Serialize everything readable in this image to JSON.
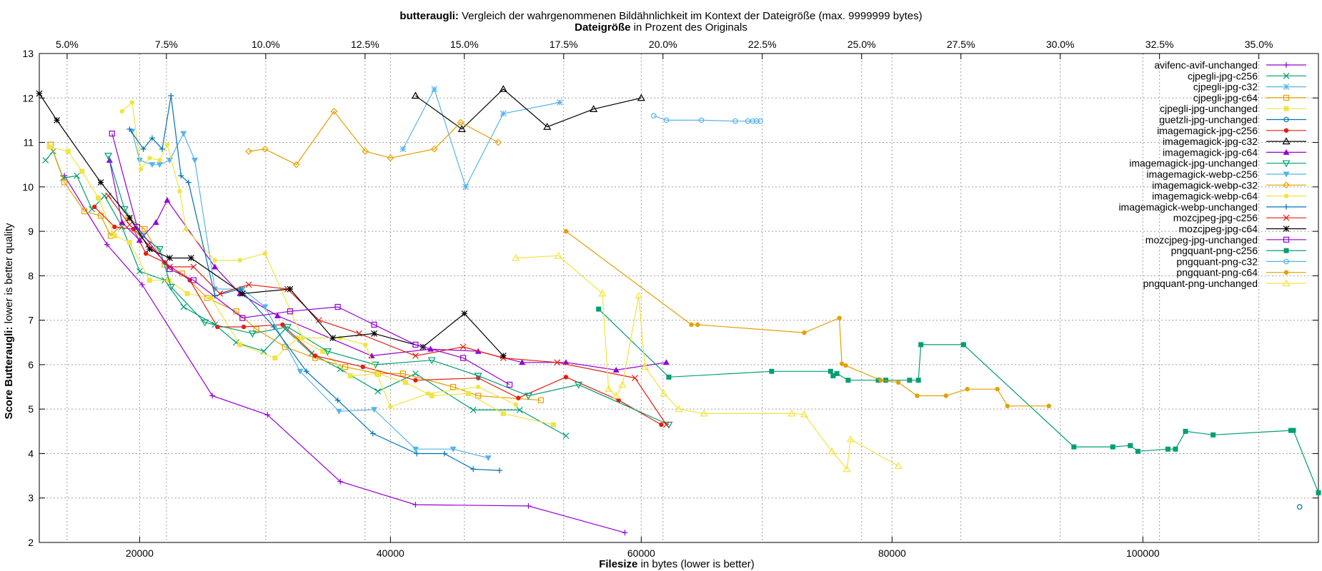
{
  "chart_data": {
    "type": "line",
    "title_bold": "butteraugli:",
    "title_rest": " Vergleich der wahrgenommenen Bildähnlichkeit im Kontext der Dateigröße (max. 9999999 bytes)",
    "x2label_bold": "Dateigröße",
    "x2label_rest": " in Prozent des Originals",
    "xlabel_bold": "Filesize",
    "xlabel_rest": " in bytes (lower is better)",
    "ylabel_bold": "Score Butteraugli:",
    "ylabel_rest": " lower is better quality",
    "xlim": [
      12000,
      114000
    ],
    "ylim": [
      2,
      13
    ],
    "x2lim": [
      4.3,
      36.5
    ],
    "xticks": [
      20000,
      40000,
      60000,
      80000,
      100000
    ],
    "xtick_labels": [
      "20000",
      "40000",
      "60000",
      "80000",
      "100000"
    ],
    "yticks": [
      2,
      3,
      4,
      5,
      6,
      7,
      8,
      9,
      10,
      11,
      12,
      13
    ],
    "ytick_labels": [
      "2",
      "3",
      "4",
      "5",
      "6",
      "7",
      "8",
      "9",
      "10",
      "11",
      "12",
      "13"
    ],
    "x2ticks": [
      5,
      7.5,
      10,
      12.5,
      15,
      17.5,
      20,
      22.5,
      25,
      27.5,
      30,
      32.5,
      35
    ],
    "x2tick_labels": [
      "5.0%",
      "7.5%",
      "10.0%",
      "12.5%",
      "15.0%",
      "17.5%",
      "20.0%",
      "22.5%",
      "25.0%",
      "27.5%",
      "30.0%",
      "32.5%",
      "35.0%"
    ],
    "grid": true,
    "legend_position": "top-right",
    "series": [
      {
        "name": "avifenc-avif-unchanged",
        "color": "#9400d3",
        "marker": "plus",
        "x": [
          14000,
          17400,
          20200,
          25800,
          30200,
          36000,
          42000,
          51000,
          58700
        ],
        "y": [
          10.25,
          8.7,
          7.8,
          5.3,
          4.87,
          3.37,
          2.85,
          2.82,
          2.22
        ]
      },
      {
        "name": "cjpegli-jpg-c256",
        "color": "#009e73",
        "marker": "x",
        "x": [
          12500,
          13100,
          13900,
          15000,
          16200,
          17200,
          18600,
          20000,
          22000,
          23500,
          26000,
          27700,
          29900,
          31600,
          33700,
          36000,
          39000,
          42000,
          46600,
          50300,
          54000
        ],
        "y": [
          10.6,
          10.8,
          10.2,
          10.25,
          9.5,
          9.8,
          9.1,
          8.1,
          7.9,
          7.3,
          6.9,
          6.5,
          6.3,
          6.8,
          6.25,
          5.9,
          5.4,
          5.8,
          4.98,
          4.98,
          4.4
        ]
      },
      {
        "name": "cjpegli-jpg-c32",
        "color": "#56b4e9",
        "marker": "asterisk",
        "x": [
          41000,
          43500,
          46000,
          49000,
          53500
        ],
        "y": [
          10.85,
          12.2,
          10.0,
          11.65,
          11.9
        ]
      },
      {
        "name": "cjpegli-jpg-c64",
        "color": "#e69f00",
        "marker": "square-open",
        "x": [
          12900,
          14000,
          15600,
          16900,
          17700,
          19100,
          20400,
          22000,
          23400,
          25400,
          27700,
          29300,
          31600,
          34000,
          36400,
          39000,
          41000,
          45000,
          47000,
          52000
        ],
        "y": [
          10.95,
          10.1,
          9.45,
          9.35,
          8.9,
          9.3,
          9.05,
          8.25,
          8.05,
          7.5,
          7.2,
          6.8,
          6.4,
          6.15,
          5.95,
          5.8,
          5.8,
          5.5,
          5.3,
          5.2
        ]
      },
      {
        "name": "cjpegli-jpg-unchanged",
        "color": "#f0e442",
        "marker": "square",
        "x": [
          12800,
          14300,
          15400,
          16700,
          18000,
          19200,
          20800,
          22300,
          23800,
          25700,
          28000,
          30800,
          32600,
          34600,
          36800,
          39000,
          41200,
          43300,
          46200,
          49000,
          53000
        ],
        "y": [
          10.9,
          10.8,
          10.35,
          9.75,
          8.9,
          8.75,
          7.9,
          7.9,
          7.6,
          7.5,
          6.45,
          6.15,
          6.6,
          6.3,
          5.75,
          5.8,
          5.6,
          5.3,
          5.35,
          4.9,
          4.65
        ]
      },
      {
        "name": "guetzli-jpg-unchanged",
        "color": "#0072b2",
        "marker": "circle-open",
        "x": [
          112500
        ],
        "y": [
          2.8
        ]
      },
      {
        "name": "imagemagick-jpg-c256",
        "color": "#e51e10",
        "marker": "circle",
        "x": [
          16400,
          18000,
          19500,
          20500,
          22000,
          24000,
          26200,
          28300,
          31400,
          34000,
          37800,
          42000,
          47000,
          50200,
          54000,
          58200,
          61600
        ],
        "y": [
          9.55,
          9.1,
          9.05,
          8.5,
          8.3,
          7.9,
          6.85,
          6.85,
          6.9,
          6.2,
          5.95,
          5.65,
          5.7,
          5.25,
          5.72,
          5.2,
          4.65
        ]
      },
      {
        "name": "imagemagick-jpg-c32",
        "color": "#000000",
        "marker": "triangle-open",
        "x": [
          42000,
          45700,
          49000,
          52500,
          56200,
          60000
        ],
        "y": [
          12.05,
          11.3,
          12.2,
          11.35,
          11.75,
          12.0
        ]
      },
      {
        "name": "imagemagick-jpg-c64",
        "color": "#9400d3",
        "marker": "triangle",
        "x": [
          17600,
          18600,
          20000,
          21300,
          22200,
          26000,
          28000,
          31000,
          38500,
          43200,
          47000,
          50500,
          54000,
          58000,
          62000
        ],
        "y": [
          10.6,
          9.2,
          8.8,
          9.2,
          9.7,
          8.2,
          7.6,
          7.1,
          6.2,
          6.35,
          6.3,
          6.05,
          6.05,
          5.88,
          6.05
        ]
      },
      {
        "name": "imagemagick-jpg-unchanged",
        "color": "#009e73",
        "marker": "triangle-down-open",
        "x": [
          17500,
          18800,
          20200,
          21600,
          22500,
          25200,
          29000,
          31800,
          35000,
          38800,
          43300,
          47000,
          51000,
          55000,
          62200
        ],
        "y": [
          10.7,
          9.5,
          8.9,
          8.6,
          7.75,
          6.95,
          6.7,
          6.85,
          6.3,
          6.0,
          6.1,
          5.75,
          5.3,
          5.55,
          4.65
        ]
      },
      {
        "name": "imagemagick-webp-c256",
        "color": "#56b4e9",
        "marker": "triangle-down",
        "x": [
          19400,
          20000,
          21000,
          21600,
          22400,
          23500,
          24400,
          26000,
          28200,
          30000,
          32800,
          35900,
          38700,
          42000,
          45000,
          47800
        ],
        "y": [
          11.25,
          10.6,
          10.5,
          10.5,
          10.6,
          11.2,
          10.6,
          7.7,
          7.7,
          7.3,
          5.85,
          4.95,
          4.99,
          4.1,
          4.1,
          3.9
        ]
      },
      {
        "name": "imagemagick-webp-c32",
        "color": "#e69f00",
        "marker": "diamond-open",
        "x": [
          28700,
          30000,
          32500,
          35500,
          38000,
          40000,
          43500,
          45600,
          48600
        ],
        "y": [
          10.8,
          10.85,
          10.5,
          11.7,
          10.8,
          10.65,
          10.85,
          11.45,
          11.0
        ]
      },
      {
        "name": "imagemagick-webp-c64",
        "color": "#f0e442",
        "marker": "circle",
        "x": [
          18600,
          19400,
          20100,
          20800,
          21600,
          22200,
          23200,
          23700,
          26000,
          28000,
          30000,
          33000,
          36000,
          38000,
          40000,
          43000,
          47000,
          50000
        ],
        "y": [
          11.7,
          11.9,
          10.4,
          10.65,
          10.6,
          10.95,
          9.9,
          9.05,
          8.35,
          8.35,
          8.5,
          6.6,
          6.6,
          6.45,
          5.05,
          5.35,
          5.5,
          5.1
        ]
      },
      {
        "name": "imagemagick-webp-unchanged",
        "color": "#0072b2",
        "marker": "plus",
        "x": [
          19200,
          20300,
          21000,
          21800,
          22500,
          23300,
          23900,
          26000,
          28000,
          30700,
          33300,
          35800,
          38600,
          42100,
          44300,
          46600,
          48700
        ],
        "y": [
          11.3,
          10.85,
          11.1,
          10.85,
          12.05,
          10.25,
          10.1,
          7.55,
          7.7,
          6.85,
          5.85,
          5.2,
          4.45,
          4.0,
          4.0,
          3.65,
          3.62
        ]
      },
      {
        "name": "mozcjpeg-jpg-c256",
        "color": "#e51e10",
        "marker": "x",
        "x": [
          17500,
          19200,
          20700,
          22400,
          24300,
          26400,
          28700,
          31800,
          34300,
          37500,
          42000,
          45800,
          49000,
          53300,
          59500,
          62000
        ],
        "y": [
          9.8,
          9.15,
          8.7,
          8.2,
          8.2,
          7.6,
          7.8,
          7.7,
          7.0,
          6.7,
          6.2,
          6.4,
          6.15,
          6.05,
          5.7,
          4.65
        ]
      },
      {
        "name": "mozcjpeg-jpg-c64",
        "color": "#000000",
        "marker": "asterisk",
        "x": [
          12000,
          13400,
          16900,
          19200,
          20800,
          22400,
          24100,
          28200,
          32000,
          35400,
          38700,
          42600,
          45900,
          49000
        ],
        "y": [
          12.1,
          11.5,
          10.1,
          9.3,
          8.6,
          8.4,
          8.4,
          7.6,
          7.7,
          6.6,
          6.7,
          6.4,
          7.15,
          6.2
        ]
      },
      {
        "name": "mozcjpeg-jpg-unchanged",
        "color": "#9400d3",
        "marker": "square-open",
        "x": [
          17800,
          19800,
          22400,
          24300,
          28200,
          32000,
          35800,
          38700,
          42000,
          45800,
          49500
        ],
        "y": [
          11.2,
          9.1,
          8.15,
          7.9,
          7.05,
          7.2,
          7.3,
          6.9,
          6.45,
          6.15,
          5.55
        ]
      },
      {
        "name": "pngquant-png-c256",
        "color": "#009e73",
        "marker": "square",
        "x": [
          56600,
          62200,
          70400,
          75100,
          75300,
          75600,
          76500,
          78900,
          79500,
          81400,
          82100,
          82300,
          85700,
          94500,
          97600,
          99000,
          99600,
          102000,
          102600,
          103400,
          105600,
          111800,
          112000,
          114000
        ],
        "y": [
          7.25,
          5.72,
          5.85,
          5.85,
          5.75,
          5.8,
          5.65,
          5.65,
          5.65,
          5.65,
          5.65,
          6.45,
          6.45,
          4.15,
          4.15,
          4.18,
          4.05,
          4.1,
          4.1,
          4.5,
          4.42,
          4.52,
          4.52,
          3.12
        ]
      },
      {
        "name": "pngquant-png-c32",
        "color": "#56b4e9",
        "marker": "circle-open",
        "x": [
          61000,
          62000,
          64800,
          67500,
          68500,
          68900,
          69200,
          69500
        ],
        "y": [
          11.6,
          11.5,
          11.5,
          11.48,
          11.48,
          11.48,
          11.48,
          11.48
        ]
      },
      {
        "name": "pngquant-png-c64",
        "color": "#e69f00",
        "marker": "circle",
        "x": [
          54000,
          64000,
          64500,
          73000,
          75800,
          76000,
          76300,
          79100,
          80500,
          82000,
          84300,
          86000,
          88400,
          89200,
          92500
        ],
        "y": [
          9.0,
          6.9,
          6.9,
          6.72,
          7.05,
          6.02,
          5.98,
          5.65,
          5.6,
          5.3,
          5.3,
          5.45,
          5.45,
          5.07,
          5.07
        ]
      },
      {
        "name": "pngquant-png-unchanged",
        "color": "#f0e442",
        "marker": "triangle-open",
        "x": [
          50000,
          53400,
          56900,
          57400,
          58000,
          58500,
          59800,
          60300,
          61800,
          63000,
          65000,
          72000,
          73000,
          75200,
          76400,
          76700,
          80500
        ],
        "y": [
          8.4,
          8.45,
          7.6,
          5.45,
          5.3,
          5.55,
          7.55,
          5.95,
          5.35,
          5.0,
          4.9,
          4.9,
          4.88,
          4.05,
          3.65,
          4.32,
          3.72
        ]
      }
    ]
  }
}
